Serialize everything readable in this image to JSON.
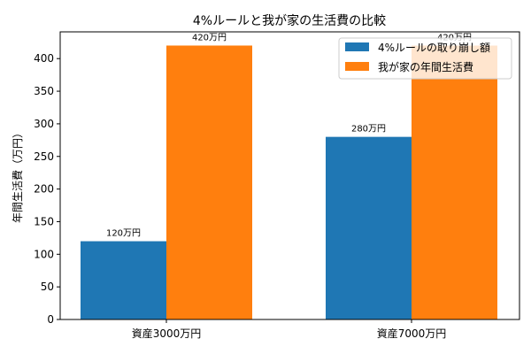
{
  "chart_data": {
    "type": "bar",
    "title": "4%ルールと我が家の生活費の比較",
    "xlabel": "",
    "ylabel": "年間生活費（万円）",
    "categories": [
      "資産3000万円",
      "資産7000万円"
    ],
    "series": [
      {
        "name": "4%ルールの取り崩し額",
        "values": [
          120,
          280
        ],
        "labels": [
          "120万円",
          "280万円"
        ],
        "color": "#1f77b4"
      },
      {
        "name": "我が家の年間生活費",
        "values": [
          420,
          420
        ],
        "labels": [
          "420万円",
          "420万円"
        ],
        "color": "#ff7f0e"
      }
    ],
    "ylim": [
      0,
      441
    ],
    "yticks": [
      0,
      50,
      100,
      150,
      200,
      250,
      300,
      350,
      400
    ],
    "grid": false,
    "legend": "top-right"
  }
}
